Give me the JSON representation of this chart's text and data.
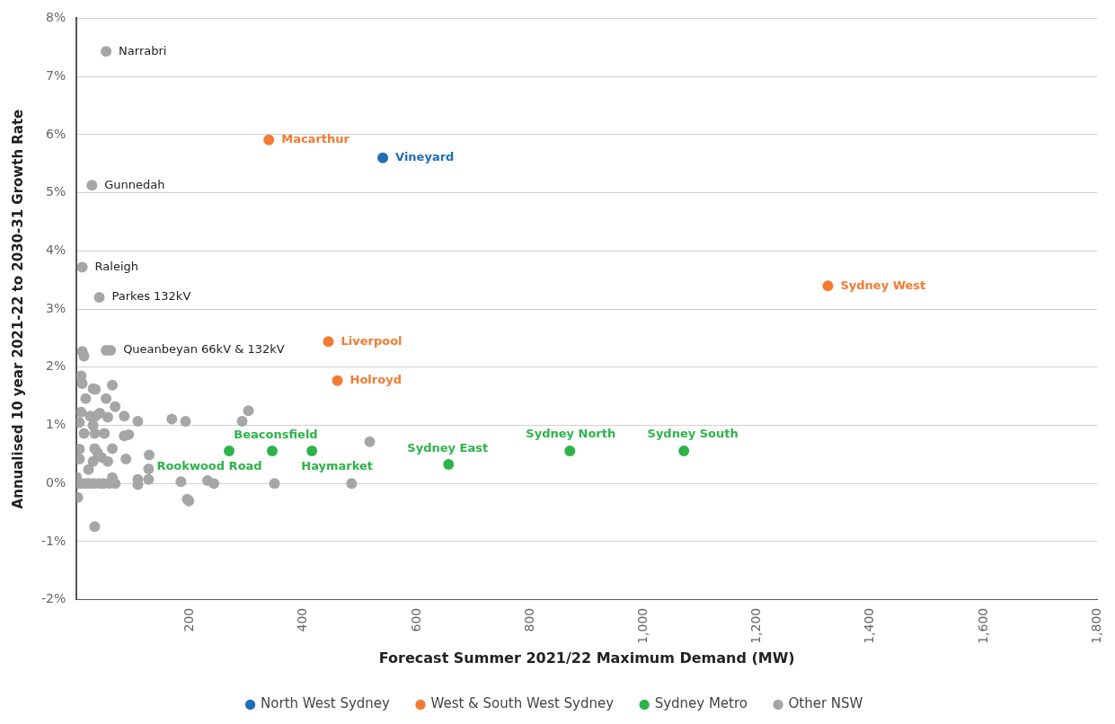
{
  "chart_data": {
    "type": "scatter",
    "xlabel": "Forecast Summer 2021/22 Maximum Demand (MW)",
    "ylabel": "Annualised 10 year 2021-22 to 2030-31 Growth Rate",
    "xlim": [
      0,
      1800
    ],
    "xticks": [
      {
        "value": 200,
        "label": "200"
      },
      {
        "value": 400,
        "label": "400"
      },
      {
        "value": 600,
        "label": "600"
      },
      {
        "value": 800,
        "label": "800"
      },
      {
        "value": 1000,
        "label": "1,000"
      },
      {
        "value": 1200,
        "label": "1,200"
      },
      {
        "value": 1400,
        "label": "1,400"
      },
      {
        "value": 1600,
        "label": "1,600"
      },
      {
        "value": 1800,
        "label": "1,800"
      }
    ],
    "ylim": [
      -2,
      8
    ],
    "yticks": [
      {
        "value": -2,
        "label": "-2%"
      },
      {
        "value": -1,
        "label": "-1%"
      },
      {
        "value": 0,
        "label": "0%"
      },
      {
        "value": 1,
        "label": "1%"
      },
      {
        "value": 2,
        "label": "2%"
      },
      {
        "value": 3,
        "label": "3%"
      },
      {
        "value": 4,
        "label": "4%"
      },
      {
        "value": 5,
        "label": "5%"
      },
      {
        "value": 6,
        "label": "6%"
      },
      {
        "value": 7,
        "label": "7%"
      },
      {
        "value": 8,
        "label": "8%"
      }
    ],
    "grid": "y",
    "legend": "bottom",
    "marker": "circle",
    "series": [
      {
        "name": "North West Sydney",
        "color": "#1f6fb8",
        "x": [
          540
        ],
        "values": [
          5.6
        ]
      },
      {
        "name": "West & South West Sydney",
        "color": "#f47a30",
        "x": [
          339,
          1325,
          444,
          460
        ],
        "values": [
          5.91,
          3.4,
          2.44,
          1.77
        ]
      },
      {
        "name": "Sydney Metro",
        "color": "#2db34a",
        "x": [
          269,
          345,
          415,
          656,
          870,
          1071
        ],
        "values": [
          0.56,
          0.56,
          0.56,
          0.33,
          0.56,
          0.56
        ]
      },
      {
        "name": "Other NSW",
        "color": "#a6a6a6",
        "x": [
          52,
          27,
          10,
          40,
          52,
          60,
          10,
          13,
          8,
          10,
          29,
          33,
          63,
          16,
          52,
          68,
          8,
          24,
          33,
          41,
          55,
          84,
          108,
          168,
          192,
          5,
          29,
          13,
          32,
          49,
          84,
          92,
          5,
          32,
          37,
          63,
          44,
          55,
          29,
          21,
          87,
          128,
          127,
          5,
          0,
          3,
          8,
          15,
          22,
          30,
          40,
          48,
          58,
          63,
          68,
          108,
          108,
          127,
          184,
          231,
          242,
          2,
          195,
          198,
          32,
          292,
          303,
          517,
          349,
          485
        ],
        "values": [
          7.43,
          5.13,
          3.72,
          3.2,
          2.29,
          2.29,
          2.27,
          2.19,
          1.85,
          1.72,
          1.63,
          1.62,
          1.69,
          1.46,
          1.46,
          1.32,
          1.23,
          1.16,
          1.16,
          1.21,
          1.14,
          1.16,
          1.07,
          1.11,
          1.07,
          1.05,
          1.0,
          0.86,
          0.86,
          0.86,
          0.82,
          0.84,
          0.59,
          0.6,
          0.53,
          0.6,
          0.45,
          0.38,
          0.38,
          0.24,
          0.42,
          0.49,
          0.25,
          0.42,
          0.11,
          0,
          0,
          0,
          0,
          0,
          0,
          0,
          0,
          0.1,
          0,
          0.07,
          -0.02,
          0.07,
          0.03,
          0.05,
          0,
          -0.24,
          -0.27,
          -0.3,
          -0.74,
          1.07,
          1.25,
          0.72,
          0,
          0
        ]
      }
    ],
    "annotations": [
      {
        "text": "Narrabri",
        "x": 52,
        "y": 7.43
      },
      {
        "text": "Macarthur",
        "x": 339,
        "y": 5.91
      },
      {
        "text": "Vineyard",
        "x": 540,
        "y": 5.6
      },
      {
        "text": "Gunnedah",
        "x": 27,
        "y": 5.13
      },
      {
        "text": "Raleigh",
        "x": 10,
        "y": 3.72
      },
      {
        "text": "Parkes 132kV",
        "x": 40,
        "y": 3.2
      },
      {
        "text": "Sydney West",
        "x": 1325,
        "y": 3.4
      },
      {
        "text": "Queanbeyan 66kV & 132kV",
        "x": 60,
        "y": 2.29
      },
      {
        "text": "Liverpool",
        "x": 444,
        "y": 2.44
      },
      {
        "text": "Holroyd",
        "x": 460,
        "y": 1.77
      },
      {
        "text": "Beaconsfield",
        "x": 345,
        "y": 0.56
      },
      {
        "text": "Rookwood Road",
        "x": 269,
        "y": 0.56
      },
      {
        "text": "Haymarket",
        "x": 415,
        "y": 0.56
      },
      {
        "text": "Sydney East",
        "x": 656,
        "y": 0.33
      },
      {
        "text": "Sydney North",
        "x": 870,
        "y": 0.56
      },
      {
        "text": "Sydney South",
        "x": 1071,
        "y": 0.56
      }
    ]
  }
}
